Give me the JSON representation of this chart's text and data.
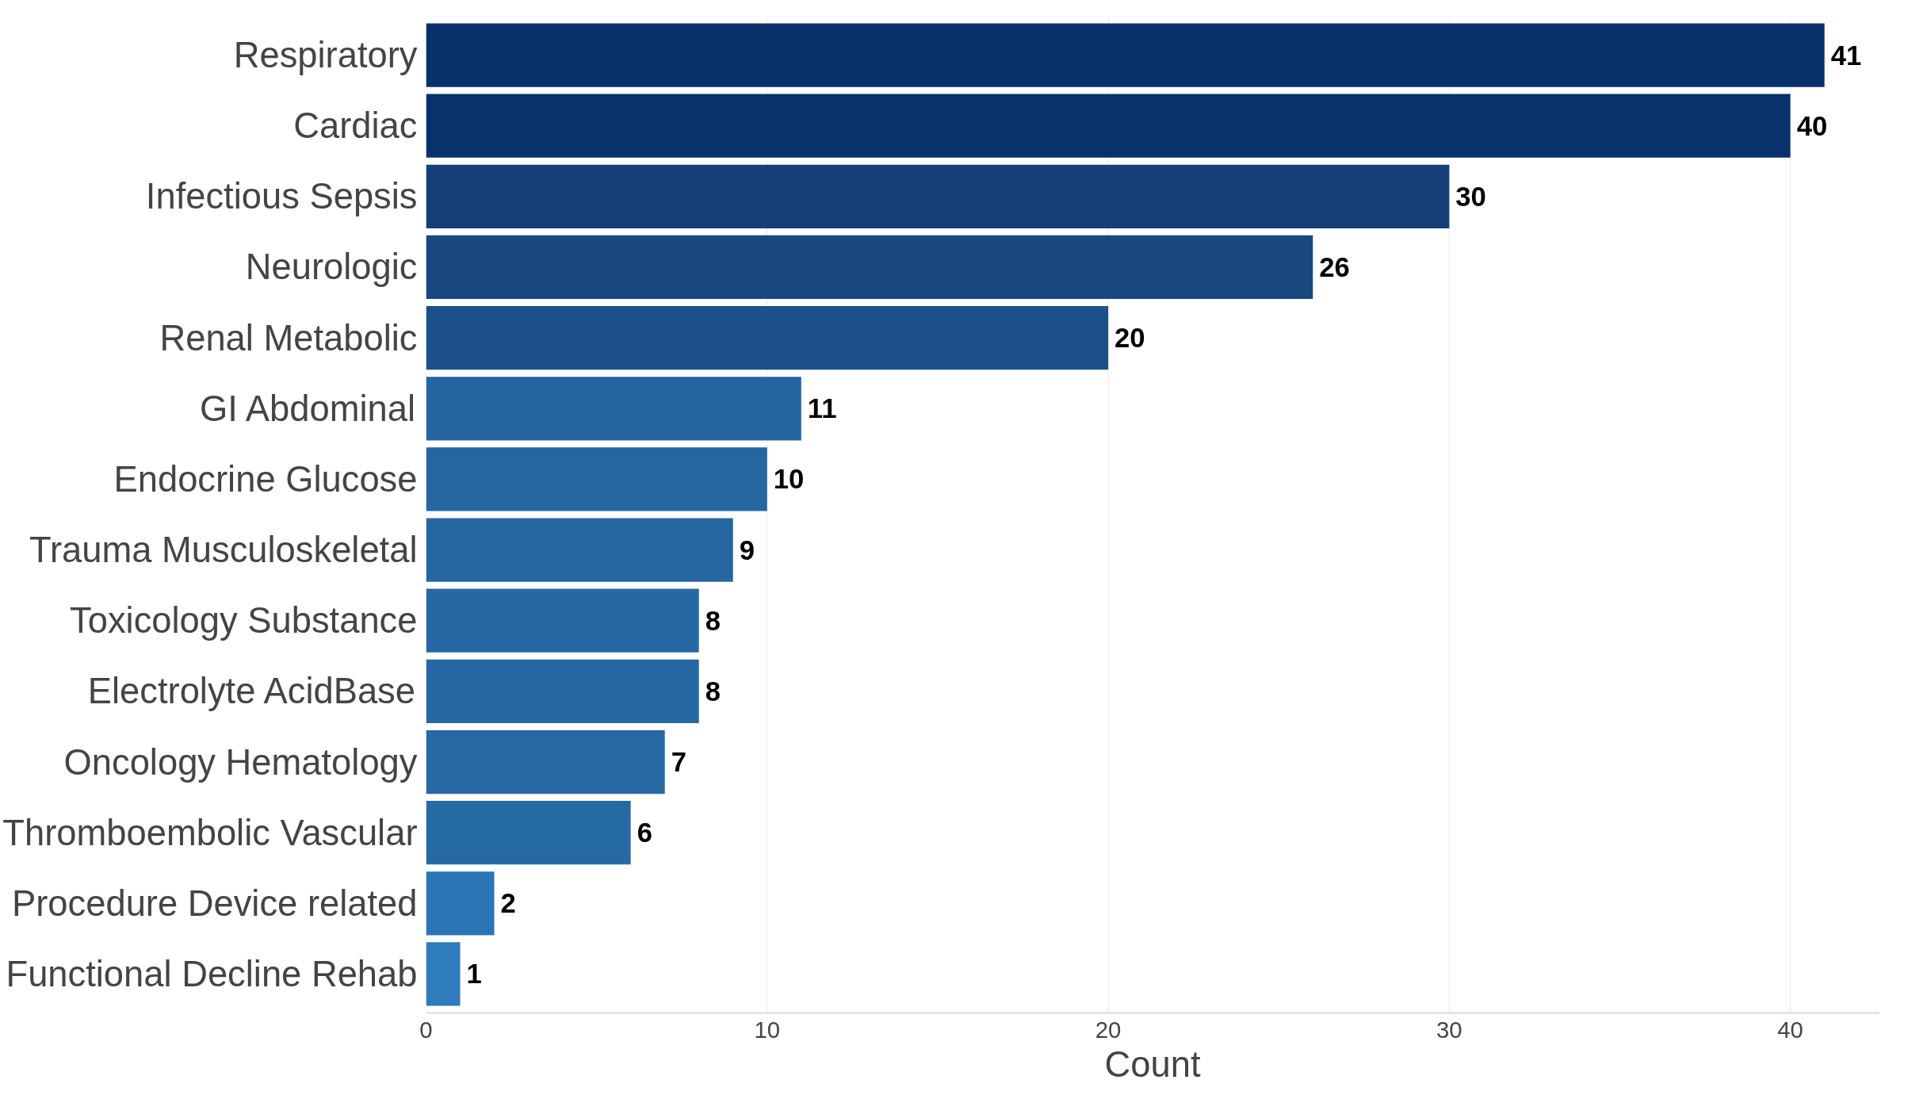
{
  "chart_data": {
    "type": "bar",
    "orientation": "horizontal",
    "xlabel": "Count",
    "categories": [
      "Respiratory",
      "Cardiac",
      "Infectious Sepsis",
      "Neurologic",
      "Renal Metabolic",
      "GI Abdominal",
      "Endocrine Glucose",
      "Trauma Musculoskeletal",
      "Toxicology Substance",
      "Electrolyte AcidBase",
      "Oncology Hematology",
      "Thromboembolic Vascular",
      "Procedure Device related",
      "Functional Decline Rehab"
    ],
    "values": [
      41,
      40,
      30,
      26,
      20,
      11,
      10,
      9,
      8,
      8,
      7,
      6,
      2,
      1
    ],
    "colors": [
      "#08306b",
      "#09316c",
      "#163f78",
      "#19477f",
      "#1c5189",
      "#2465a0",
      "#2566a1",
      "#2567a2",
      "#2568a3",
      "#2568a3",
      "#2669a4",
      "#266aa5",
      "#2b75b4",
      "#2e7cbb"
    ],
    "xlim": [
      0,
      42.6
    ],
    "xticks": [
      0,
      10,
      20,
      30,
      40
    ],
    "grid": "x",
    "data_labels": true
  }
}
